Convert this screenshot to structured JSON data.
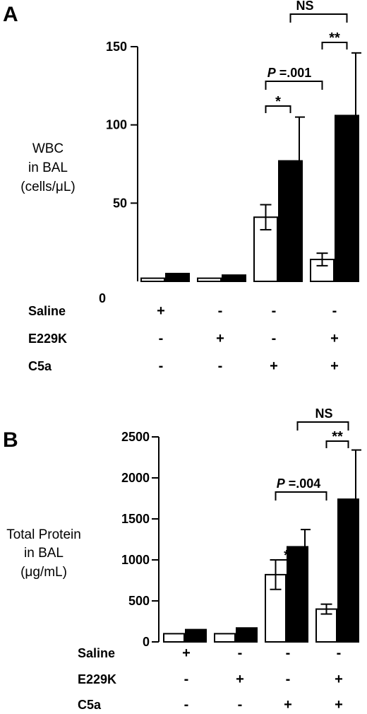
{
  "chart_data": [
    {
      "type": "bar",
      "panel_label": "A",
      "ylabel_lines": [
        "WBC",
        "in BAL",
        "(cells/μL)"
      ],
      "ylim": [
        0,
        150
      ],
      "yticks": [
        0,
        50,
        100,
        150
      ],
      "groups": 4,
      "series": [
        {
          "fill": "white",
          "values": [
            2,
            2,
            41,
            14
          ],
          "errors": [
            0,
            0,
            8,
            4
          ]
        },
        {
          "fill": "black",
          "values": [
            5,
            4,
            77,
            106
          ],
          "errors": [
            0,
            0,
            28,
            40
          ]
        }
      ],
      "conditions": [
        {
          "label": "Saline",
          "signs": [
            "+",
            "-",
            "-",
            "-"
          ]
        },
        {
          "label": "E229K",
          "signs": [
            "-",
            "+",
            "-",
            "+"
          ]
        },
        {
          "label": "C5a",
          "signs": [
            "-",
            "-",
            "+",
            "+"
          ]
        }
      ],
      "annotations": [
        {
          "text": "*",
          "type": "star"
        },
        {
          "text": "**",
          "type": "star"
        },
        {
          "text_prefix": "P",
          "text": " =.001",
          "type": "p"
        },
        {
          "text": "NS",
          "type": "ns"
        }
      ]
    },
    {
      "type": "bar",
      "panel_label": "B",
      "ylabel_lines": [
        "Total Protein",
        "in BAL",
        "(μg/mL)"
      ],
      "ylim": [
        0,
        2500
      ],
      "yticks": [
        0,
        500,
        1000,
        1500,
        2000,
        2500
      ],
      "groups": 4,
      "series": [
        {
          "fill": "white",
          "values": [
            100,
            100,
            820,
            400
          ],
          "errors": [
            0,
            0,
            180,
            60
          ]
        },
        {
          "fill": "black",
          "values": [
            150,
            170,
            1160,
            1740
          ],
          "errors": [
            0,
            0,
            210,
            600
          ]
        }
      ],
      "conditions": [
        {
          "label": "Saline",
          "signs": [
            "+",
            "-",
            "-",
            "-"
          ]
        },
        {
          "label": "E229K",
          "signs": [
            "-",
            "+",
            "-",
            "+"
          ]
        },
        {
          "label": "C5a",
          "signs": [
            "-",
            "-",
            "+",
            "+"
          ]
        }
      ],
      "annotations": [
        {
          "text": "*",
          "type": "star"
        },
        {
          "text": "**",
          "type": "star"
        },
        {
          "text_prefix": "P",
          "text": " =.004",
          "type": "p"
        },
        {
          "text": "NS",
          "type": "ns"
        }
      ]
    }
  ]
}
